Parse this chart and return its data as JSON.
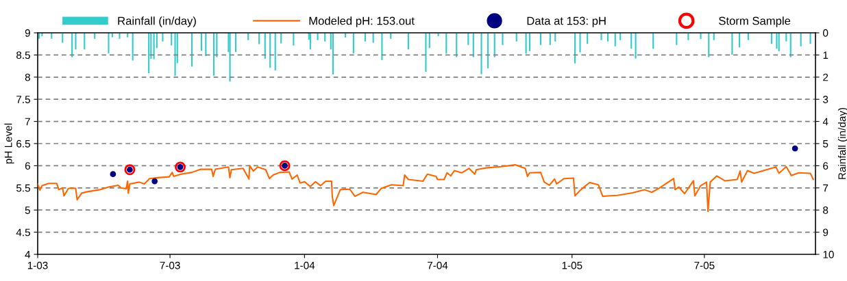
{
  "chart_data": {
    "type": "line",
    "xlim": [
      "2003-01-01",
      "2005-11-30"
    ],
    "xticks": [
      {
        "value": "2003-01-01",
        "label": "1-03"
      },
      {
        "value": "2003-07-01",
        "label": "7-03"
      },
      {
        "value": "2004-01-01",
        "label": "1-04"
      },
      {
        "value": "2004-07-01",
        "label": "7-04"
      },
      {
        "value": "2005-01-01",
        "label": "1-05"
      },
      {
        "value": "2005-07-01",
        "label": "7-05"
      }
    ],
    "ylim": [
      4,
      9
    ],
    "yticks": [
      4,
      4.5,
      5,
      5.5,
      6,
      6.5,
      7,
      7.5,
      8,
      8.5,
      9
    ],
    "y2lim": [
      10,
      0
    ],
    "y2ticks": [
      0,
      1,
      2,
      3,
      4,
      5,
      6,
      7,
      8,
      9,
      10
    ],
    "ylabel": "pH Level",
    "y2label": "Rainfall (in/day)",
    "grid": "y",
    "legend": "top",
    "series": [
      {
        "name": "Rainfall (in/day)",
        "type": "bar",
        "axis": "y2",
        "color": "#33cccc",
        "x": [
          "2003-01-03",
          "2003-01-07",
          "2003-01-20",
          "2003-02-04",
          "2003-02-17",
          "2003-02-22",
          "2003-03-06",
          "2003-03-20",
          "2003-04-08",
          "2003-04-13",
          "2003-04-23",
          "2003-05-04",
          "2003-05-11",
          "2003-06-02",
          "2003-06-05",
          "2003-06-09",
          "2003-06-13",
          "2003-06-21",
          "2003-07-03",
          "2003-07-08",
          "2003-07-11",
          "2003-07-31",
          "2003-08-13",
          "2003-08-19",
          "2003-08-30",
          "2003-09-03",
          "2003-09-19",
          "2003-09-21",
          "2003-09-29",
          "2003-10-16",
          "2003-10-31",
          "2003-11-08",
          "2003-11-15",
          "2003-11-22",
          "2003-11-30",
          "2003-12-17",
          "2004-01-07",
          "2004-01-09",
          "2004-01-19",
          "2004-01-29",
          "2004-02-06",
          "2004-02-09",
          "2004-02-26",
          "2004-03-08",
          "2004-03-24",
          "2004-04-04",
          "2004-04-16",
          "2004-04-28",
          "2004-05-22",
          "2004-06-15",
          "2004-06-20",
          "2004-07-02",
          "2004-07-13",
          "2004-07-27",
          "2004-08-12",
          "2004-08-19",
          "2004-08-30",
          "2004-09-08",
          "2004-09-17",
          "2004-09-28",
          "2004-10-17",
          "2004-10-30",
          "2004-11-04",
          "2004-11-19",
          "2004-12-02",
          "2004-12-09",
          "2005-01-05",
          "2005-01-12",
          "2005-01-22",
          "2005-02-10",
          "2005-02-19",
          "2005-03-01",
          "2005-03-08",
          "2005-03-23",
          "2005-03-29",
          "2005-04-22",
          "2005-05-24",
          "2005-06-09",
          "2005-06-26",
          "2005-07-07",
          "2005-07-14",
          "2005-08-08",
          "2005-08-18",
          "2005-08-30",
          "2005-10-01",
          "2005-10-08",
          "2005-10-11",
          "2005-10-21",
          "2005-10-27",
          "2005-11-10",
          "2005-11-23"
        ],
        "values": [
          0.27,
          0.15,
          0.27,
          0.45,
          1.1,
          0.75,
          0.75,
          0.27,
          0.93,
          0.2,
          0.27,
          0.2,
          1.25,
          1.82,
          1.17,
          1.19,
          0.69,
          0.39,
          0.57,
          1.94,
          1.37,
          1.52,
          0.81,
          1.05,
          1.94,
          1.1,
          0.87,
          2.2,
          0.87,
          0.33,
          0.51,
          1.17,
          1.58,
          1.7,
          0.48,
          0.57,
          0.31,
          0.75,
          0.33,
          0.39,
          0.75,
          1.88,
          0.21,
          0.93,
          0.39,
          0.45,
          1.23,
          0.27,
          0.75,
          1.76,
          0.69,
          0.15,
          0.94,
          1.1,
          0.55,
          1.1,
          1.87,
          1.6,
          1.1,
          0.55,
          0.39,
          0.94,
          0.83,
          0.55,
          0.55,
          0.39,
          1.38,
          0.88,
          0.5,
          0.33,
          0.39,
          0.61,
          0.33,
          0.72,
          1.16,
          0.72,
          0.55,
          0.33,
          0.28,
          1.1,
          0.33,
          0.99,
          0.66,
          0.33,
          0.5,
          0.72,
          0.83,
          0.39,
          1.1,
          0.61,
          0.5
        ]
      },
      {
        "name": "Modeled pH: 153.out",
        "color": "#ff6600",
        "line_style": "solid",
        "x": [
          "2003-01-01",
          "2003-01-04",
          "2003-01-07",
          "2003-01-16",
          "2003-01-27",
          "2003-01-30",
          "2003-02-04",
          "2003-02-06",
          "2003-02-12",
          "2003-02-22",
          "2003-02-24",
          "2003-03-02",
          "2003-03-09",
          "2003-03-27",
          "2003-04-08",
          "2003-04-21",
          "2003-04-25",
          "2003-05-02",
          "2003-05-04",
          "2003-05-05",
          "2003-05-07",
          "2003-05-20",
          "2003-05-27",
          "2003-06-03",
          "2003-06-14",
          "2003-06-30",
          "2003-07-04",
          "2003-07-06",
          "2003-07-16",
          "2003-07-31",
          "2003-08-12",
          "2003-08-27",
          "2003-08-29",
          "2003-09-01",
          "2003-09-19",
          "2003-09-21",
          "2003-09-23",
          "2003-10-09",
          "2003-10-17",
          "2003-10-18",
          "2003-10-23",
          "2003-10-29",
          "2003-11-09",
          "2003-11-14",
          "2003-11-19",
          "2003-11-28",
          "2003-12-11",
          "2003-12-15",
          "2003-12-22",
          "2003-12-26",
          "2004-01-01",
          "2004-01-09",
          "2004-01-16",
          "2004-01-23",
          "2004-01-30",
          "2004-02-07",
          "2004-02-08",
          "2004-02-10",
          "2004-02-19",
          "2004-03-03",
          "2004-03-10",
          "2004-03-21",
          "2004-04-08",
          "2004-04-15",
          "2004-04-29",
          "2004-05-15",
          "2004-05-17",
          "2004-05-22",
          "2004-06-11",
          "2004-06-17",
          "2004-06-29",
          "2004-07-01",
          "2004-07-10",
          "2004-07-14",
          "2004-07-19",
          "2004-07-24",
          "2004-08-03",
          "2004-08-13",
          "2004-08-21",
          "2004-08-23",
          "2004-09-05",
          "2004-09-26",
          "2004-10-15",
          "2004-10-29",
          "2004-11-01",
          "2004-11-04",
          "2004-11-19",
          "2004-11-24",
          "2004-12-01",
          "2004-12-08",
          "2004-12-11",
          "2004-12-21",
          "2005-01-03",
          "2005-01-05",
          "2005-01-13",
          "2005-01-25",
          "2005-02-06",
          "2005-02-12",
          "2005-02-19",
          "2005-03-04",
          "2005-03-25",
          "2005-04-10",
          "2005-04-20",
          "2005-04-30",
          "2005-05-20",
          "2005-05-22",
          "2005-05-27",
          "2005-06-04",
          "2005-06-16",
          "2005-06-18",
          "2005-06-26",
          "2005-07-04",
          "2005-07-06",
          "2005-07-09",
          "2005-07-18",
          "2005-07-29",
          "2005-08-15",
          "2005-08-19",
          "2005-08-21",
          "2005-08-29",
          "2005-09-07",
          "2005-10-07",
          "2005-10-11",
          "2005-10-21",
          "2005-10-28",
          "2005-11-07",
          "2005-11-23",
          "2005-11-27"
        ],
        "values": [
          5.59,
          5.45,
          5.55,
          5.6,
          5.6,
          5.46,
          5.5,
          5.32,
          5.49,
          5.49,
          5.23,
          5.38,
          5.41,
          5.46,
          5.52,
          5.56,
          5.5,
          5.48,
          5.65,
          5.38,
          5.59,
          5.63,
          5.59,
          5.71,
          5.73,
          5.75,
          5.85,
          5.76,
          5.81,
          5.85,
          5.92,
          5.92,
          5.76,
          5.92,
          5.97,
          5.73,
          5.91,
          5.94,
          5.7,
          6.0,
          5.88,
          5.97,
          5.91,
          5.71,
          5.79,
          5.85,
          5.86,
          5.7,
          5.79,
          5.61,
          5.64,
          5.53,
          5.64,
          5.55,
          5.65,
          5.65,
          5.31,
          5.1,
          5.46,
          5.47,
          5.31,
          5.4,
          5.35,
          5.49,
          5.57,
          5.55,
          5.79,
          5.69,
          5.65,
          5.81,
          5.76,
          5.69,
          5.69,
          5.84,
          5.77,
          5.89,
          5.84,
          5.94,
          5.81,
          5.91,
          5.95,
          5.98,
          6.02,
          5.94,
          5.76,
          5.84,
          5.85,
          5.63,
          5.56,
          5.7,
          5.59,
          5.71,
          5.72,
          5.32,
          5.46,
          5.62,
          5.57,
          5.31,
          5.32,
          5.33,
          5.39,
          5.46,
          5.4,
          5.49,
          5.71,
          5.46,
          5.52,
          5.37,
          5.66,
          5.32,
          5.55,
          5.63,
          4.97,
          5.63,
          5.77,
          5.66,
          5.69,
          5.88,
          5.63,
          5.89,
          5.83,
          5.97,
          5.83,
          5.98,
          5.78,
          5.84,
          5.83,
          5.69
        ]
      },
      {
        "name": "Data at 153: pH",
        "type": "scatter",
        "color": "#000080",
        "marker": "circle",
        "x": [
          "2003-04-14",
          "2003-05-07",
          "2003-06-10",
          "2003-07-15",
          "2003-12-05",
          "2005-11-02"
        ],
        "values": [
          5.81,
          5.91,
          5.65,
          5.97,
          6.0,
          6.39
        ]
      },
      {
        "name": "Storm Sample",
        "type": "scatter",
        "color": "#ff0000",
        "marker": "circle",
        "x": [
          "2003-05-07",
          "2003-07-15",
          "2003-12-05"
        ],
        "values": [
          5.91,
          5.97,
          6.0
        ]
      }
    ]
  }
}
